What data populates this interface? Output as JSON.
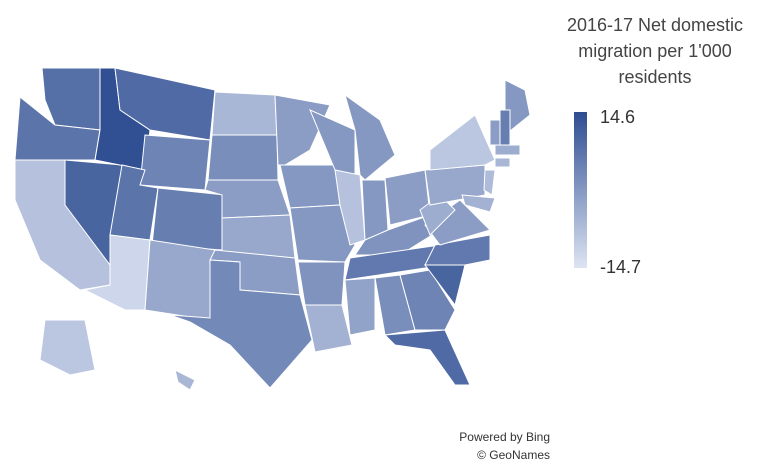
{
  "chart_data": {
    "type": "choropleth",
    "title": "2016-17 Net domestic migration per 1'000 residents",
    "scale": {
      "min": -14.7,
      "max": 14.6
    },
    "colors": [
      "#dde4f3",
      "#2d4d91"
    ],
    "attribution": [
      "Powered by Bing",
      "© GeoNames"
    ],
    "values": [
      8,
      7,
      -8,
      10,
      14,
      9,
      4,
      7,
      -12,
      5,
      -3,
      -6,
      2,
      -1,
      -3,
      -1,
      3,
      -1,
      0,
      0,
      1,
      -5,
      0,
      -8,
      0,
      0,
      -1,
      1,
      6,
      -2,
      2,
      4,
      9,
      10,
      6,
      -1,
      -4,
      -3,
      -9,
      0,
      -1,
      5,
      -4,
      -6,
      -7,
      -5,
      -9,
      -6
    ]
  }
}
